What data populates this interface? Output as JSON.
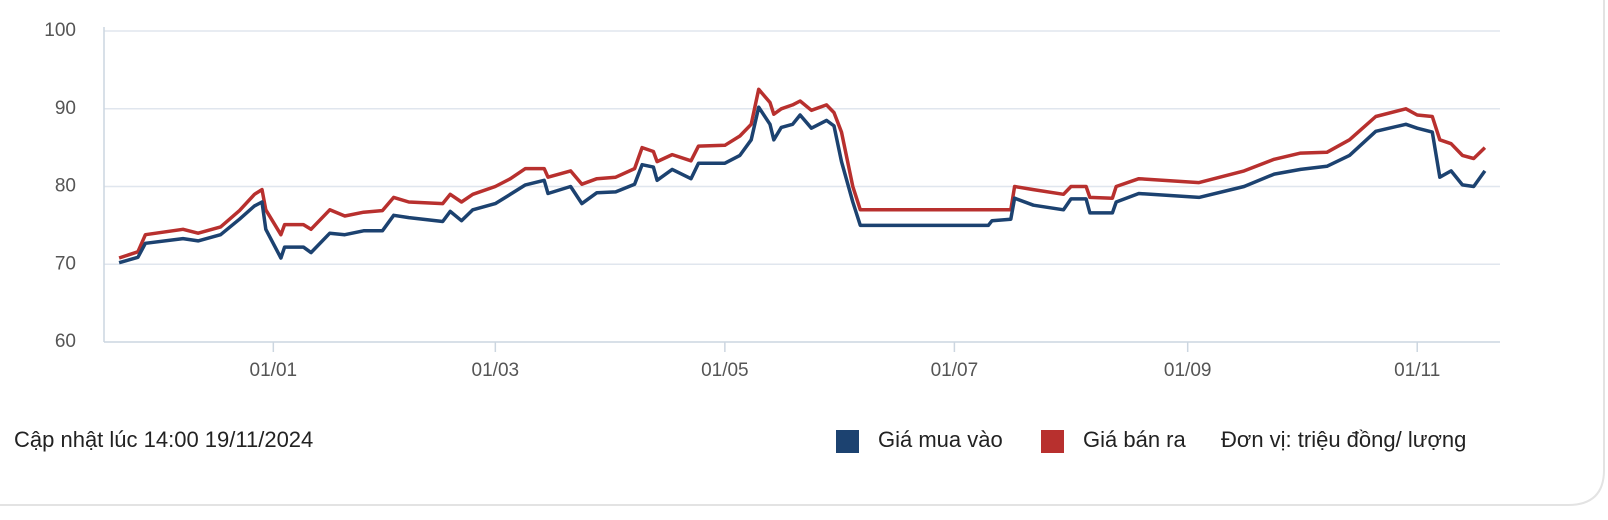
{
  "chart_data": {
    "type": "line",
    "x": [
      "21/11",
      "26/11",
      "28/11",
      "08/12",
      "12/12",
      "18/12",
      "23/12",
      "27/12",
      "29/12",
      "30/12",
      "03/01",
      "04/01",
      "09/01",
      "11/01",
      "16/01",
      "20/01",
      "25/01",
      "30/01",
      "02/02",
      "06/02",
      "15/02",
      "17/02",
      "20/02",
      "23/02",
      "01/03",
      "05/03",
      "09/03",
      "14/03",
      "15/03",
      "21/03",
      "24/03",
      "28/03",
      "02/04",
      "07/04",
      "09/04",
      "12/04",
      "13/04",
      "17/04",
      "22/04",
      "24/04",
      "01/05",
      "05/05",
      "08/05",
      "10/05",
      "13/05",
      "14/05",
      "16/05",
      "19/05",
      "21/05",
      "24/05",
      "28/05",
      "30/05",
      "01/06",
      "04/06",
      "06/06",
      "10/07",
      "11/07",
      "16/07",
      "17/07",
      "22/07",
      "30/07",
      "01/08",
      "05/08",
      "06/08",
      "12/08",
      "13/08",
      "19/08",
      "04/09",
      "16/09",
      "24/09",
      "01/10",
      "08/10",
      "14/10",
      "21/10",
      "29/10",
      "01/11",
      "05/11",
      "07/11",
      "10/11",
      "13/11",
      "16/11",
      "19/11"
    ],
    "series": [
      {
        "name": "Giá mua vào",
        "color": "#1c4270",
        "values": [
          70.2,
          70.9,
          72.7,
          73.3,
          73.0,
          73.8,
          75.8,
          77.5,
          78.0,
          74.5,
          70.8,
          72.2,
          72.2,
          71.5,
          74.0,
          73.8,
          74.3,
          74.3,
          76.3,
          76.0,
          75.5,
          76.8,
          75.6,
          77.0,
          77.8,
          79.0,
          80.2,
          80.8,
          79.1,
          80.0,
          77.8,
          79.2,
          79.3,
          80.3,
          82.8,
          82.5,
          80.8,
          82.2,
          81.0,
          83.0,
          83.0,
          84.0,
          86.0,
          90.2,
          88.0,
          86.0,
          87.6,
          88.0,
          89.2,
          87.5,
          88.5,
          87.8,
          83.2,
          78.0,
          75.0,
          75.0,
          75.6,
          75.8,
          78.5,
          77.6,
          77.0,
          78.4,
          78.4,
          76.6,
          76.6,
          78.0,
          79.1,
          78.6,
          80.0,
          81.6,
          82.2,
          82.6,
          84.0,
          87.1,
          88.0,
          87.5,
          87.0,
          81.2,
          82.0,
          80.2,
          80.0,
          82.0
        ]
      },
      {
        "name": "Giá bán ra",
        "color": "#b8302e",
        "values": [
          70.8,
          71.6,
          73.8,
          74.5,
          74.0,
          74.8,
          76.9,
          79.0,
          79.6,
          77.0,
          73.8,
          75.1,
          75.1,
          74.5,
          77.0,
          76.2,
          76.7,
          76.9,
          78.6,
          78.0,
          77.8,
          79.0,
          78.0,
          79.0,
          80.0,
          81.0,
          82.3,
          82.3,
          81.2,
          82.0,
          80.3,
          81.0,
          81.2,
          82.3,
          85.0,
          84.5,
          83.2,
          84.1,
          83.3,
          85.2,
          85.3,
          86.5,
          88.0,
          92.5,
          90.8,
          89.3,
          90.0,
          90.5,
          91.0,
          89.8,
          90.5,
          89.5,
          87.0,
          80.0,
          77.0,
          77.0,
          77.0,
          77.0,
          80.0,
          79.6,
          79.0,
          80.0,
          80.0,
          78.6,
          78.5,
          80.0,
          81.0,
          80.5,
          82.0,
          83.5,
          84.3,
          84.4,
          86.0,
          89.0,
          90.0,
          89.2,
          89.0,
          86.0,
          85.5,
          84.0,
          83.6,
          85.0
        ]
      }
    ],
    "xlim": [
      "17/11",
      "23/11"
    ],
    "xticks": [
      "01/01",
      "01/03",
      "01/05",
      "01/07",
      "01/09",
      "01/11"
    ],
    "ylim": [
      60,
      100
    ],
    "yticks": [
      60,
      70,
      80,
      90,
      100
    ],
    "grid": true,
    "note": "Cập nhật lúc 14:00 19/11/2024",
    "unit": "Đơn vị: triệu đồng/ lượng"
  }
}
